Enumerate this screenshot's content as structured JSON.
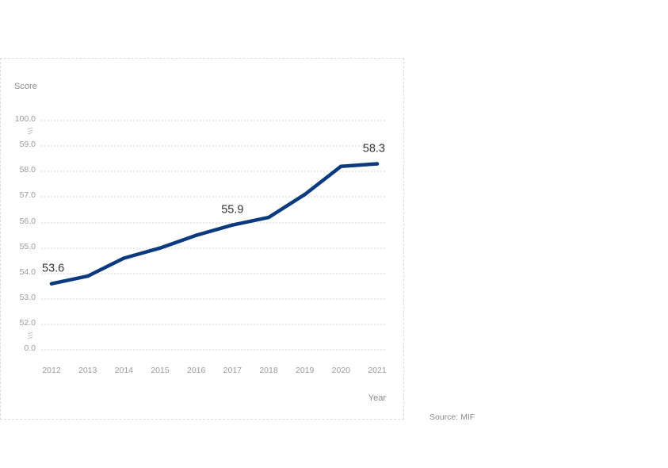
{
  "chart_data": {
    "type": "line",
    "xlabel": "Year",
    "ylabel": "Score",
    "x": [
      "2012",
      "2013",
      "2014",
      "2015",
      "2016",
      "2017",
      "2018",
      "2019",
      "2020",
      "2021"
    ],
    "series": [
      {
        "values": [
          53.6,
          53.9,
          54.6,
          55.0,
          55.5,
          55.9,
          56.2,
          57.1,
          58.2,
          58.3
        ]
      }
    ],
    "y_ticks": [
      "100.0",
      "59.0",
      "58.0",
      "57.0",
      "56.0",
      "55.0",
      "54.0",
      "53.0",
      "52.0",
      "0.0"
    ],
    "axis_breaks": [
      "between 59.0 and 100.0",
      "between 0.0 and 52.0"
    ],
    "grid": true,
    "line_color": "#0b3a7e",
    "annotations": [
      {
        "x": "2012",
        "text": "53.6"
      },
      {
        "x": "2017",
        "text": "55.9"
      },
      {
        "x": "2021",
        "text": "58.3"
      }
    ]
  },
  "source_text": "Source: MIF"
}
